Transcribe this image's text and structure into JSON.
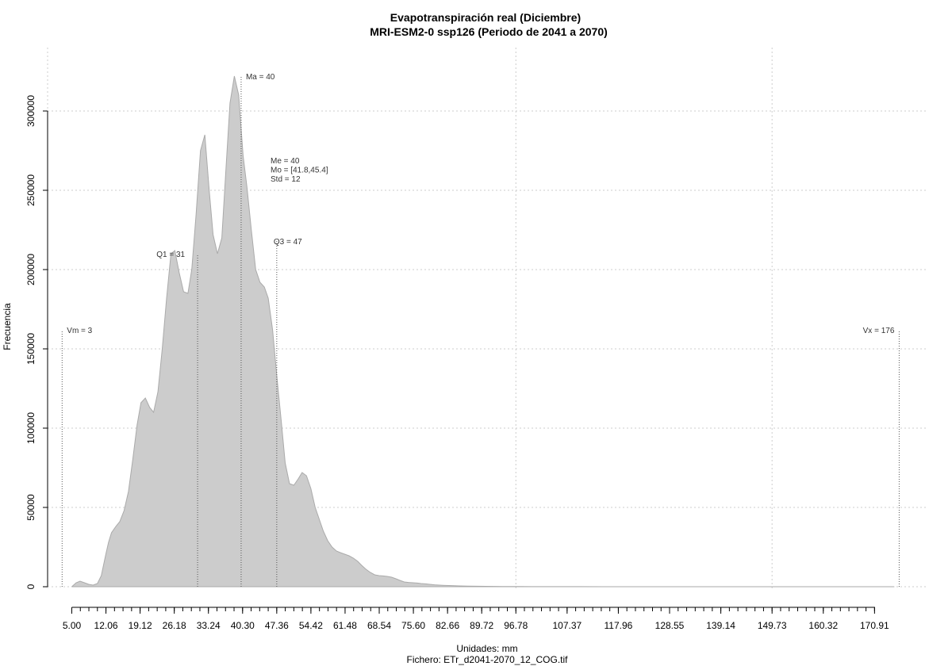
{
  "chart_data": {
    "type": "area",
    "title": "Evapotranspiración real (Diciembre)",
    "subtitle": "MRI-ESM2-0 ssp126 (Periodo de 2041 a 2070)",
    "xlabel": "Unidades: mm",
    "caption": "Fichero: ETr_d2041-2070_12_COG.tif",
    "ylabel": "Frecuencia",
    "xlim": [
      0,
      182
    ],
    "ylim": [
      0,
      320000
    ],
    "grid": true,
    "x_ticks": [
      "5.00",
      "12.06",
      "19.12",
      "26.18",
      "33.24",
      "40.30",
      "47.36",
      "54.42",
      "61.48",
      "68.54",
      "75.60",
      "82.66",
      "89.72",
      "96.78",
      "107.37",
      "117.96",
      "128.55",
      "139.14",
      "149.73",
      "160.32",
      "170.91"
    ],
    "x_tick_values": [
      5.0,
      12.06,
      19.12,
      26.18,
      33.24,
      40.3,
      47.36,
      54.42,
      61.48,
      68.54,
      75.6,
      82.66,
      89.72,
      96.78,
      107.37,
      117.96,
      128.55,
      139.14,
      149.73,
      160.32,
      170.91
    ],
    "x_minor_step": 1.765,
    "x_minor_range": [
      5.0,
      171.0
    ],
    "y_ticks": [
      0,
      50000,
      100000,
      150000,
      200000,
      250000,
      300000
    ],
    "y_tick_labels": [
      "0",
      "50000",
      "100000",
      "150000",
      "200000",
      "250000",
      "300000"
    ],
    "x_grid": [
      0,
      96.78,
      149.73
    ],
    "y_grid": [
      0,
      50000,
      100000,
      150000,
      200000,
      250000,
      300000
    ],
    "series": [
      {
        "x": [
          5.0,
          5.9,
          6.7,
          7.6,
          8.5,
          9.4,
          10.3,
          11.1,
          12.0,
          12.6,
          13.2,
          14.1,
          14.9,
          15.8,
          16.7,
          17.6,
          18.5,
          19.3,
          20.2,
          21.1,
          21.9,
          22.8,
          23.7,
          24.6,
          25.5,
          26.3,
          27.2,
          28.1,
          29.0,
          29.8,
          30.7,
          31.6,
          32.5,
          33.4,
          34.2,
          35.1,
          36.0,
          36.9,
          37.7,
          38.6,
          39.5,
          40.4,
          41.2,
          42.1,
          43.0,
          43.9,
          44.8,
          45.6,
          46.5,
          47.4,
          48.3,
          49.1,
          50.0,
          50.9,
          51.8,
          52.6,
          53.5,
          54.4,
          55.3,
          56.2,
          57.0,
          57.9,
          58.8,
          59.7,
          60.5,
          61.4,
          62.3,
          63.2,
          64.1,
          64.9,
          65.8,
          66.7,
          67.6,
          68.5,
          69.3,
          70.2,
          71.1,
          72.0,
          72.8,
          73.7,
          74.6,
          75.5,
          76.4,
          77.2,
          78.1,
          79.0,
          80.0,
          81.7,
          83.5,
          85.2,
          87.0,
          88.8,
          90.5,
          92.3,
          94.0,
          95.8,
          97.6,
          100.0,
          105.0,
          110.0,
          120.0,
          130.0,
          140.0,
          150.0,
          160.0,
          170.0,
          175.0
        ],
        "y": [
          0,
          2500,
          3500,
          2500,
          1500,
          1000,
          2000,
          7000,
          20000,
          28000,
          34000,
          38000,
          41000,
          48000,
          60000,
          80000,
          102000,
          116000,
          119000,
          113000,
          110000,
          123000,
          150000,
          182000,
          210000,
          212000,
          198000,
          186000,
          185000,
          200000,
          235000,
          275000,
          285000,
          250000,
          222000,
          210000,
          220000,
          265000,
          305000,
          322000,
          310000,
          272000,
          252000,
          225000,
          200000,
          192000,
          189000,
          182000,
          162000,
          132000,
          104000,
          78000,
          65000,
          64000,
          68000,
          72000,
          70000,
          62000,
          50000,
          42000,
          35000,
          29000,
          25000,
          22500,
          21500,
          20500,
          19500,
          18000,
          16000,
          13500,
          11000,
          9000,
          7500,
          7000,
          6800,
          6500,
          6000,
          5000,
          4000,
          3000,
          2700,
          2500,
          2300,
          2000,
          1800,
          1500,
          1200,
          900,
          700,
          500,
          400,
          300,
          250,
          200,
          150,
          100,
          80,
          60,
          40,
          30,
          20,
          10,
          5,
          0,
          0,
          0,
          0
        ]
      }
    ],
    "markers": [
      {
        "label": "Vm = 3",
        "x": 3.0,
        "y": 162000
      },
      {
        "label": "Q1 = 31",
        "x": 31.0,
        "y": 210000
      },
      {
        "label": "Ma = 40",
        "x": 40.0,
        "y": 322000
      },
      {
        "label": "Q3 = 47",
        "x": 47.36,
        "y": 218000
      },
      {
        "label": "Vx = 176",
        "x": 176.0,
        "y": 162000
      }
    ],
    "stats": [
      "Me = 40",
      "Mo = [41.8,45.4]",
      "Std = 12"
    ]
  }
}
